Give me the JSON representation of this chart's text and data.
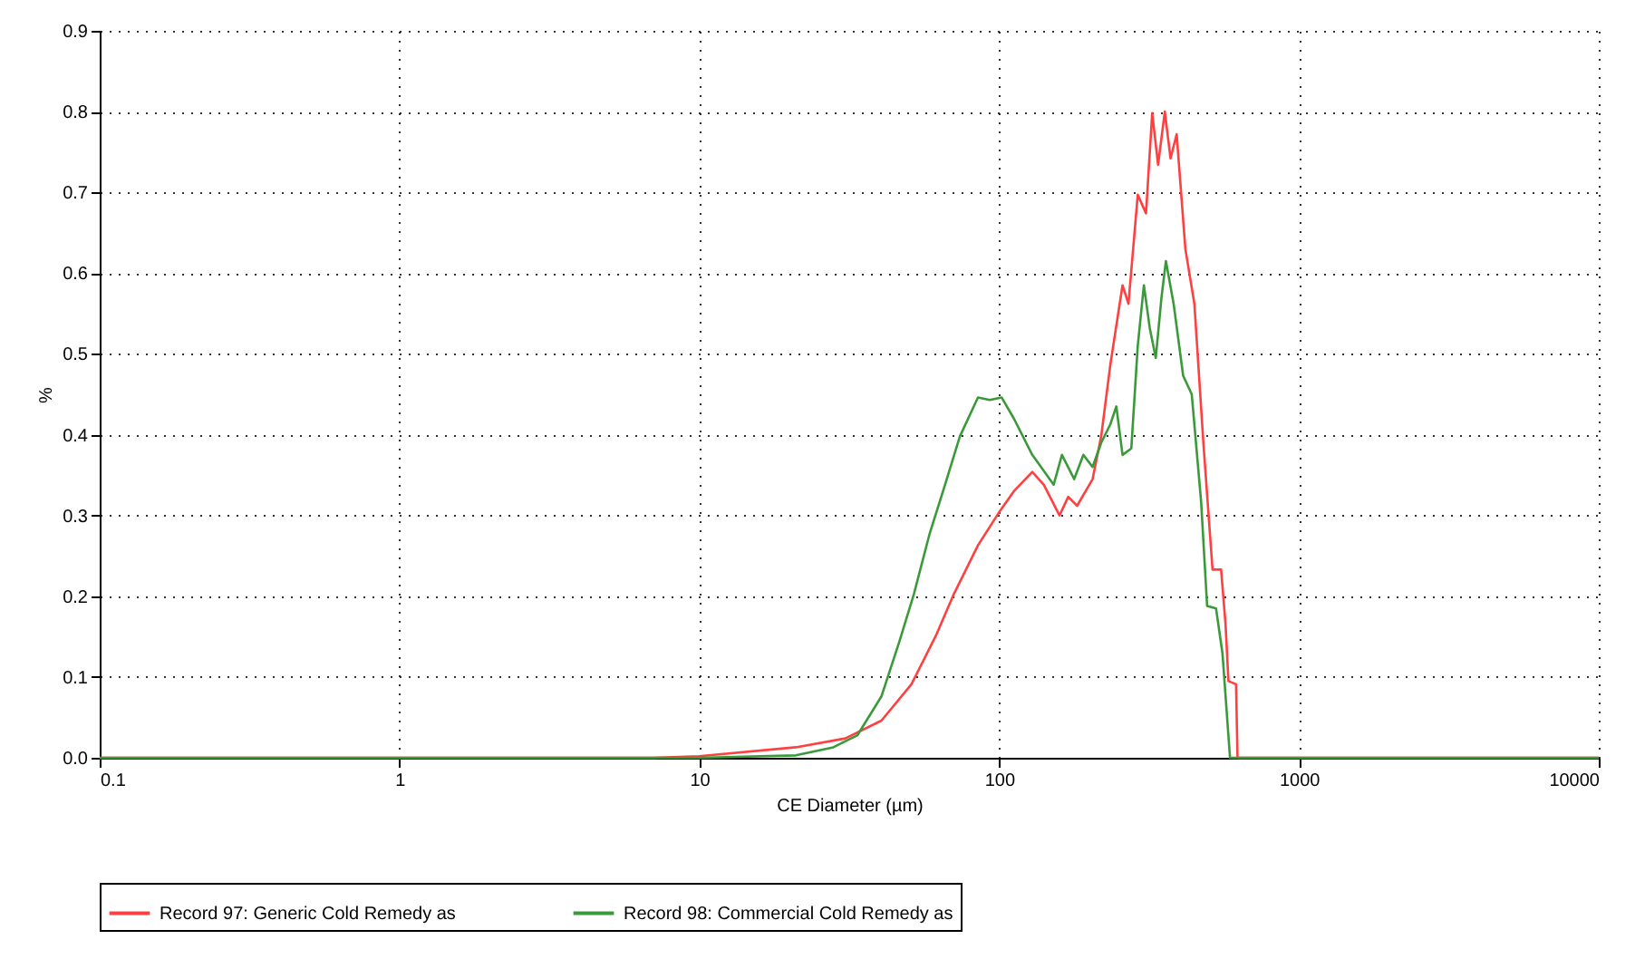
{
  "chart_data": {
    "type": "line",
    "xlabel": "CE Diameter (µm)",
    "ylabel": "%",
    "log": "x",
    "grid": true,
    "legend": "bottom",
    "marker": "none",
    "line_style": "solid",
    "xlim": [
      0.1,
      10000
    ],
    "xticks": [
      0.1,
      1,
      10,
      100,
      1000,
      10000
    ],
    "ylim": [
      0,
      0.9
    ],
    "yticks": [
      {
        "value": 0,
        "label": "0.0"
      },
      0.1,
      0.2,
      0.3,
      0.4,
      0.5,
      0.6,
      0.7,
      0.8,
      0.9
    ],
    "series": [
      {
        "name": "Record 97: Generic Cold Remedy as",
        "color": "#ff4040",
        "x": [
          0.1,
          7,
          10,
          21,
          30.7,
          40.5,
          51,
          61.5,
          70.7,
          85,
          100,
          112,
          129,
          141,
          159,
          170,
          182,
          205,
          219,
          235,
          258,
          270,
          290,
          309,
          324,
          339,
          357,
          373,
          391,
          418,
          448,
          480,
          515,
          550,
          569,
          582,
          617,
          624,
          10000
        ],
        "values": [
          0,
          0,
          0.002,
          0.013,
          0.024,
          0.046,
          0.091,
          0.151,
          0.203,
          0.263,
          0.304,
          0.33,
          0.354,
          0.338,
          0.3,
          0.323,
          0.312,
          0.345,
          0.398,
          0.487,
          0.585,
          0.562,
          0.697,
          0.674,
          0.798,
          0.734,
          0.8,
          0.742,
          0.772,
          0.63,
          0.562,
          0.39,
          0.233,
          0.233,
          0.166,
          0.095,
          0.091,
          0,
          0
        ]
      },
      {
        "name": "Record 98: Commercial Cold Remedy as",
        "color": "#3a9a3a",
        "x": [
          0.1,
          10,
          21,
          28,
          33.7,
          40.5,
          46.5,
          52,
          58.7,
          66,
          74,
          85,
          93,
          102,
          112,
          129,
          138,
          152,
          162,
          178,
          191,
          205,
          219,
          235,
          246,
          258,
          276,
          290,
          304,
          318,
          333,
          348,
          360,
          382,
          411,
          439,
          472,
          494,
          529,
          556,
          589,
          10000
        ],
        "values": [
          0,
          0,
          0.003,
          0.013,
          0.028,
          0.076,
          0.144,
          0.203,
          0.278,
          0.338,
          0.398,
          0.446,
          0.443,
          0.446,
          0.42,
          0.375,
          0.36,
          0.338,
          0.375,
          0.345,
          0.375,
          0.36,
          0.39,
          0.413,
          0.435,
          0.375,
          0.383,
          0.51,
          0.585,
          0.532,
          0.495,
          0.57,
          0.615,
          0.562,
          0.473,
          0.45,
          0.316,
          0.188,
          0.185,
          0.129,
          0,
          0
        ]
      }
    ]
  }
}
